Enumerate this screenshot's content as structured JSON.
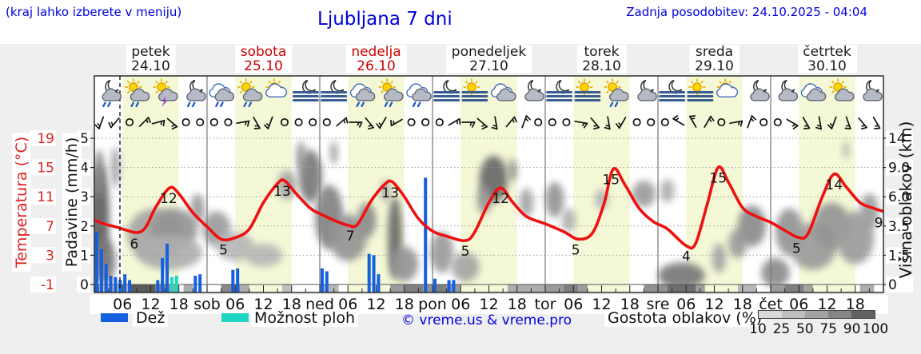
{
  "header": {
    "left_note": "(kraj lahko izberete v meniju)",
    "title": "Ljubljana 7 dni",
    "updated": "Zadnja posodobitev: 24.10.2025 - 04:04"
  },
  "days": [
    {
      "name": "petek",
      "date": "24.10",
      "color": "#1a1a1a"
    },
    {
      "name": "sobota",
      "date": "25.10",
      "color": "#cc0000"
    },
    {
      "name": "nedelja",
      "date": "26.10",
      "color": "#cc0000"
    },
    {
      "name": "ponedeljek",
      "date": "27.10",
      "color": "#1a1a1a"
    },
    {
      "name": "torek",
      "date": "28.10",
      "color": "#1a1a1a"
    },
    {
      "name": "sreda",
      "date": "29.10",
      "color": "#1a1a1a"
    },
    {
      "name": "četrtek",
      "date": "30.10",
      "color": "#1a1a1a"
    }
  ],
  "axes": {
    "temp_title": "Temperatura (°C)",
    "temp_ticks": [
      "19",
      "15",
      "11",
      "7",
      "3",
      "-1"
    ],
    "precip_title": "Padavine (mm/h)",
    "precip_ticks": [
      "5",
      "4",
      "3",
      "2",
      "1",
      "0"
    ],
    "cloud_title": "Višina oblakov (km)",
    "cloud_ticks": [
      "14",
      "9.0",
      "6.0",
      "3.5",
      "1.5",
      "0"
    ],
    "time_ticks": [
      "06",
      "12",
      "18",
      "sob",
      "06",
      "12",
      "18",
      "ned",
      "06",
      "12",
      "18",
      "pon",
      "06",
      "12",
      "18",
      "tor",
      "06",
      "12",
      "18",
      "sre",
      "06",
      "12",
      "18",
      "čet",
      "06",
      "12",
      "18"
    ]
  },
  "legend": {
    "rain": "Dež",
    "showers": "Možnost ploh",
    "copyright": "© vreme.us & vreme.pro",
    "cloud_density": "Gostota oblakov (%)",
    "density_ticks": [
      "10",
      "25",
      "50",
      "75",
      "90",
      "100"
    ]
  },
  "colors": {
    "rain": "#1560e0",
    "showers": "#1fd6c4",
    "temp_curve": "#ee1111",
    "day_band": "#f5f8d6",
    "blue_text": "#0000e0",
    "red_text": "#cc0000",
    "temp_axis_red": "#dd2222",
    "density_scale": [
      "#d9d9d9",
      "#bfbfbf",
      "#a3a3a3",
      "#858585",
      "#616161"
    ]
  },
  "chart_data": {
    "type": "meteogram",
    "title": "Ljubljana 7 dni",
    "hours_total": 168,
    "day_band_hours": [
      6,
      18
    ],
    "now_line_hour": 5.45,
    "temp_axis_range": [
      -1,
      19
    ],
    "precip_axis_range": [
      0,
      5
    ],
    "cloud_axis_levels_km": [
      0,
      1.5,
      3.5,
      6.0,
      9.0,
      14
    ],
    "temperature_series": [
      [
        0,
        7.8
      ],
      [
        2,
        7.3
      ],
      [
        5,
        6.8
      ],
      [
        9,
        6.1
      ],
      [
        11,
        6.9
      ],
      [
        13,
        9.5
      ],
      [
        16,
        12.2
      ],
      [
        18,
        11.4
      ],
      [
        21,
        8.8
      ],
      [
        24,
        6.9
      ],
      [
        27,
        5.2
      ],
      [
        30,
        5.4
      ],
      [
        33,
        6.6
      ],
      [
        36,
        10.2
      ],
      [
        39,
        12.8
      ],
      [
        40.5,
        13.2
      ],
      [
        43,
        11.4
      ],
      [
        46,
        9.4
      ],
      [
        48,
        8.7
      ],
      [
        51,
        7.8
      ],
      [
        54,
        7.1
      ],
      [
        56,
        7.2
      ],
      [
        59,
        10.5
      ],
      [
        62,
        12.8
      ],
      [
        63.5,
        13.0
      ],
      [
        66,
        11.0
      ],
      [
        69,
        8.0
      ],
      [
        72,
        6.3
      ],
      [
        75,
        5.6
      ],
      [
        79,
        5.0
      ],
      [
        81,
        6.2
      ],
      [
        84,
        10.2
      ],
      [
        86.5,
        12.2
      ],
      [
        89,
        10.3
      ],
      [
        92,
        8.3
      ],
      [
        96,
        7.3
      ],
      [
        100,
        6.2
      ],
      [
        103,
        5.2
      ],
      [
        106,
        6.0
      ],
      [
        108.5,
        10.0
      ],
      [
        110.5,
        14.8
      ],
      [
        113,
        12.6
      ],
      [
        116,
        9.4
      ],
      [
        119,
        7.6
      ],
      [
        122,
        6.6
      ],
      [
        126,
        4.3
      ],
      [
        128,
        4.6
      ],
      [
        130.5,
        10.0
      ],
      [
        132.8,
        15.0
      ],
      [
        135,
        13.0
      ],
      [
        138,
        9.5
      ],
      [
        141,
        8.3
      ],
      [
        144,
        7.5
      ],
      [
        147,
        6.4
      ],
      [
        150,
        5.4
      ],
      [
        152,
        6.0
      ],
      [
        155,
        11.0
      ],
      [
        157.5,
        14.1
      ],
      [
        160,
        12.4
      ],
      [
        163,
        10.2
      ],
      [
        166,
        9.4
      ],
      [
        168,
        9.0
      ]
    ],
    "temp_point_labels": [
      [
        "6",
        8.5,
        6.0
      ],
      [
        "12",
        15.8,
        12.2
      ],
      [
        "5",
        27.5,
        5.2
      ],
      [
        "13",
        40,
        13.2
      ],
      [
        "7",
        54.5,
        7.1
      ],
      [
        "13",
        63,
        13.0
      ],
      [
        "5",
        79,
        5.0
      ],
      [
        "12",
        86.5,
        12.2
      ],
      [
        "5",
        102.5,
        5.2
      ],
      [
        "15",
        110,
        14.8
      ],
      [
        "4",
        126,
        4.3
      ],
      [
        "15",
        132.8,
        15.0
      ],
      [
        "5",
        149.5,
        5.4
      ],
      [
        "14",
        157.5,
        14.1
      ],
      [
        "9",
        167,
        8.9
      ]
    ],
    "rain_bars_mmh": [
      [
        0,
        1.8
      ],
      [
        1,
        1.2
      ],
      [
        2,
        0.7
      ],
      [
        3,
        0.3
      ],
      [
        4,
        0.25
      ],
      [
        5,
        0.15
      ],
      [
        6,
        0.35
      ],
      [
        7,
        0.15
      ],
      [
        13,
        0.15
      ],
      [
        14,
        0.9
      ],
      [
        15,
        1.4
      ],
      [
        21,
        0.3
      ],
      [
        22,
        0.35
      ],
      [
        29,
        0.5
      ],
      [
        30,
        0.55
      ],
      [
        48,
        0.55
      ],
      [
        49,
        0.45
      ],
      [
        58,
        1.05
      ],
      [
        59,
        1.0
      ],
      [
        60,
        0.35
      ],
      [
        70,
        3.65
      ],
      [
        72,
        0.2
      ],
      [
        75,
        0.15
      ],
      [
        76,
        0.15
      ]
    ],
    "shower_bars_mmh": [
      [
        16,
        0.25
      ],
      [
        17,
        0.3
      ]
    ],
    "weather_icons": [
      {
        "t": 3,
        "parts": [
          "moon",
          "cloud",
          "rain"
        ]
      },
      {
        "t": 9,
        "parts": [
          "sun",
          "cloud",
          "rain"
        ]
      },
      {
        "t": 15,
        "parts": [
          "sun",
          "cloud",
          "storm"
        ]
      },
      {
        "t": 21,
        "parts": [
          "moon",
          "cloud",
          "rain"
        ]
      },
      {
        "t": 27,
        "parts": [
          "cloud2",
          "cloud",
          "rain"
        ]
      },
      {
        "t": 33,
        "parts": [
          "sun",
          "cloud",
          "rain"
        ]
      },
      {
        "t": 39,
        "parts": [
          "sun",
          "cloud2"
        ]
      },
      {
        "t": 45,
        "parts": [
          "moon",
          "fog"
        ]
      },
      {
        "t": 51,
        "parts": [
          "moon",
          "fog"
        ]
      },
      {
        "t": 57,
        "parts": [
          "cloud2",
          "cloud",
          "rain"
        ]
      },
      {
        "t": 63,
        "parts": [
          "sun",
          "cloud",
          "rain"
        ]
      },
      {
        "t": 69,
        "parts": [
          "cloud2",
          "cloud",
          "rain"
        ]
      },
      {
        "t": 75,
        "parts": [
          "moon",
          "fog"
        ]
      },
      {
        "t": 81,
        "parts": [
          "sun",
          "fog"
        ]
      },
      {
        "t": 87,
        "parts": [
          "cloud2",
          "cloud"
        ]
      },
      {
        "t": 93,
        "parts": [
          "moon",
          "cloud"
        ]
      },
      {
        "t": 99,
        "parts": [
          "moon",
          "fog"
        ]
      },
      {
        "t": 105,
        "parts": [
          "sun",
          "fog"
        ]
      },
      {
        "t": 111,
        "parts": [
          "sun",
          "cloud",
          "rain"
        ]
      },
      {
        "t": 117,
        "parts": [
          "moon",
          "cloud"
        ]
      },
      {
        "t": 123,
        "parts": [
          "moon",
          "fog"
        ]
      },
      {
        "t": 129,
        "parts": [
          "sun",
          "fog"
        ]
      },
      {
        "t": 135,
        "parts": [
          "sun",
          "cloud2"
        ]
      },
      {
        "t": 141,
        "parts": [
          "moon",
          "cloud"
        ]
      },
      {
        "t": 147,
        "parts": [
          "moon",
          "cloud"
        ]
      },
      {
        "t": 153,
        "parts": [
          "cloud2",
          "cloud"
        ]
      },
      {
        "t": 159,
        "parts": [
          "sun",
          "cloud"
        ]
      },
      {
        "t": 165,
        "parts": [
          "moon",
          "cloud"
        ]
      }
    ],
    "wind_barbs": [
      200,
      220,
      "c",
      45,
      75,
      130,
      "c",
      "c",
      "c",
      "c",
      80,
      150,
      200,
      "c",
      "c",
      "c",
      "c",
      50,
      90,
      140,
      210,
      240,
      "c",
      "c",
      "c",
      60,
      90,
      130,
      170,
      40,
      20,
      "c",
      "c",
      "c",
      100,
      140,
      170,
      210,
      "c",
      "c",
      "c",
      300,
      330,
      30,
      "c",
      80,
      20,
      "c",
      "c",
      120,
      150,
      170,
      200,
      160,
      140,
      150
    ],
    "cloud_blobs": [
      [
        1,
        2.3,
        2.2,
        1.8,
        0.8
      ],
      [
        2,
        0.8,
        2.5,
        0.8,
        0.65
      ],
      [
        1,
        3.8,
        1.2,
        0.8,
        0.55
      ],
      [
        4.5,
        4.0,
        0.9,
        0.7,
        0.45
      ],
      [
        13,
        1.7,
        6,
        0.9,
        0.4
      ],
      [
        17,
        1.9,
        5,
        0.7,
        0.5
      ],
      [
        16,
        1.1,
        7,
        0.6,
        0.35
      ],
      [
        22,
        2.6,
        1.5,
        0.5,
        0.45
      ],
      [
        26,
        1.9,
        3,
        0.6,
        0.45
      ],
      [
        30,
        1.3,
        4,
        0.5,
        0.3
      ],
      [
        36,
        1.0,
        4,
        0.4,
        0.3
      ],
      [
        41,
        3.4,
        2,
        0.5,
        0.4
      ],
      [
        46,
        3.7,
        2.5,
        0.9,
        0.65
      ],
      [
        44,
        4.4,
        1,
        0.5,
        0.5
      ],
      [
        50,
        2.3,
        3,
        1.1,
        0.6
      ],
      [
        51,
        4.5,
        0.8,
        0.4,
        0.45
      ],
      [
        54,
        1.6,
        4,
        0.8,
        0.5
      ],
      [
        58,
        2.2,
        2,
        0.6,
        0.55
      ],
      [
        64,
        1.6,
        1.5,
        1.4,
        0.75
      ],
      [
        66,
        0.7,
        3,
        0.6,
        0.5
      ],
      [
        62,
        3.2,
        1,
        0.4,
        0.4
      ],
      [
        74,
        1.1,
        2.5,
        0.7,
        0.45
      ],
      [
        79,
        0.6,
        3,
        0.5,
        0.4
      ],
      [
        85,
        3.6,
        3,
        0.8,
        0.75
      ],
      [
        83,
        2.9,
        1.5,
        0.5,
        0.5
      ],
      [
        89,
        3.9,
        1,
        0.4,
        0.5
      ],
      [
        92,
        2.8,
        1.5,
        0.5,
        0.4
      ],
      [
        98,
        2.9,
        2,
        0.6,
        0.5
      ],
      [
        101,
        2.2,
        1.5,
        0.4,
        0.35
      ],
      [
        108,
        2.9,
        1.5,
        0.35,
        0.3
      ],
      [
        117,
        3.1,
        2.5,
        0.45,
        0.45
      ],
      [
        122,
        3.2,
        1.5,
        0.4,
        0.35
      ],
      [
        125,
        0.3,
        5,
        0.45,
        0.65
      ],
      [
        133,
        0.9,
        1.5,
        0.5,
        0.4
      ],
      [
        137,
        1.4,
        2,
        0.5,
        0.45
      ],
      [
        140,
        2.0,
        3,
        0.7,
        0.55
      ],
      [
        145,
        0.4,
        3,
        0.5,
        0.55
      ],
      [
        148,
        1.8,
        3,
        0.8,
        0.5
      ],
      [
        153,
        1.3,
        5,
        0.8,
        0.45
      ],
      [
        157,
        2.0,
        4,
        0.8,
        0.5
      ],
      [
        162,
        1.6,
        4,
        0.9,
        0.45
      ],
      [
        165,
        2.5,
        2,
        0.6,
        0.45
      ],
      [
        160,
        4.6,
        0.7,
        0.3,
        0.3
      ]
    ],
    "ground_strip": [
      [
        0,
        1,
        0.85
      ],
      [
        1,
        7.5,
        0.3
      ],
      [
        7.5,
        13,
        0.8
      ],
      [
        13,
        16,
        0.55
      ],
      [
        16,
        18,
        0.4
      ],
      [
        19,
        21,
        0.35
      ],
      [
        27,
        31,
        0.55
      ],
      [
        31,
        33,
        0.35
      ],
      [
        40,
        42,
        0.25
      ],
      [
        48,
        52,
        0.3
      ],
      [
        63,
        66,
        0.45
      ],
      [
        66,
        70,
        0.6
      ],
      [
        70,
        72,
        0.5
      ],
      [
        72,
        75,
        0.6
      ],
      [
        75,
        78,
        0.45
      ],
      [
        88,
        96,
        0.35
      ],
      [
        96,
        100,
        0.45
      ],
      [
        100,
        103,
        0.6
      ],
      [
        103,
        105,
        0.45
      ],
      [
        117,
        122,
        0.5
      ],
      [
        122,
        128,
        0.7
      ],
      [
        128,
        130,
        0.45
      ],
      [
        137,
        141,
        0.3
      ],
      [
        144,
        147,
        0.45
      ],
      [
        147,
        151,
        0.6
      ],
      [
        151,
        153,
        0.4
      ],
      [
        163,
        166,
        0.35
      ]
    ]
  }
}
